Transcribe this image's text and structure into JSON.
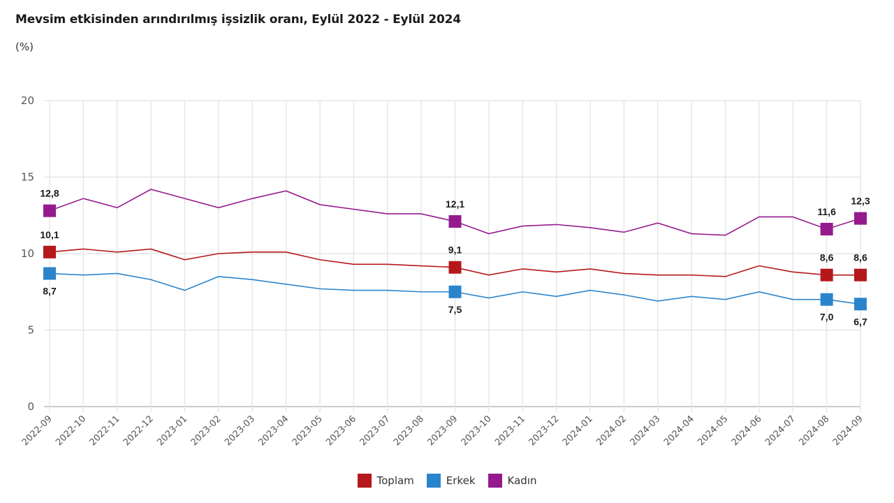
{
  "chart_data": {
    "type": "line",
    "title": "Mevsim etkisinden arındırılmış işsizlik oranı, Eylül 2022 - Eylül 2024",
    "subtitle": "(%)",
    "xlabel": "",
    "ylabel": "",
    "ylim": [
      0,
      20
    ],
    "yticks": [
      "0",
      "5",
      "10",
      "15",
      "20"
    ],
    "ytick_values": [
      0,
      5,
      10,
      15,
      20
    ],
    "grid": true,
    "legend_position": "bottom-center",
    "x": [
      "2022-09",
      "2022-10",
      "2022-11",
      "2022-12",
      "2023-01",
      "2023-02",
      "2023-03",
      "2023-04",
      "2023-05",
      "2023-06",
      "2023-07",
      "2023-08",
      "2023-09",
      "2023-10",
      "2023-11",
      "2023-12",
      "2024-01",
      "2024-02",
      "2024-03",
      "2024-04",
      "2024-05",
      "2024-06",
      "2024-07",
      "2024-08",
      "2024-09"
    ],
    "labeled_indices": [
      0,
      12,
      23,
      24
    ],
    "series": [
      {
        "name": "Toplam",
        "color": "#b5171b",
        "label_position": "above",
        "values": [
          10.1,
          10.3,
          10.1,
          10.3,
          9.6,
          10.0,
          10.1,
          10.1,
          9.6,
          9.3,
          9.3,
          9.2,
          9.1,
          8.6,
          9.0,
          8.8,
          9.0,
          8.7,
          8.6,
          8.6,
          8.5,
          9.2,
          8.8,
          8.6,
          8.6
        ],
        "data_labels": [
          "10,1",
          "9,1",
          "8,6",
          "8,6"
        ]
      },
      {
        "name": "Erkek",
        "color": "#2a84cc",
        "label_position": "below",
        "values": [
          8.7,
          8.6,
          8.7,
          8.3,
          7.6,
          8.5,
          8.3,
          8.0,
          7.7,
          7.6,
          7.6,
          7.5,
          7.5,
          7.1,
          7.5,
          7.2,
          7.6,
          7.3,
          6.9,
          7.2,
          7.0,
          7.5,
          7.0,
          7.0,
          6.7
        ],
        "data_labels": [
          "8,7",
          "7,5",
          "7,0",
          "6,7"
        ]
      },
      {
        "name": "Kadın",
        "color": "#951a8e",
        "label_position": "above",
        "values": [
          12.8,
          13.6,
          13.0,
          14.2,
          13.6,
          13.0,
          13.6,
          14.1,
          13.2,
          12.9,
          12.6,
          12.6,
          12.1,
          11.3,
          11.8,
          11.9,
          11.7,
          11.4,
          12.0,
          11.3,
          11.2,
          12.4,
          12.4,
          11.6,
          12.3
        ],
        "data_labels": [
          "12,8",
          "12,1",
          "11,6",
          "12,3"
        ]
      }
    ]
  }
}
